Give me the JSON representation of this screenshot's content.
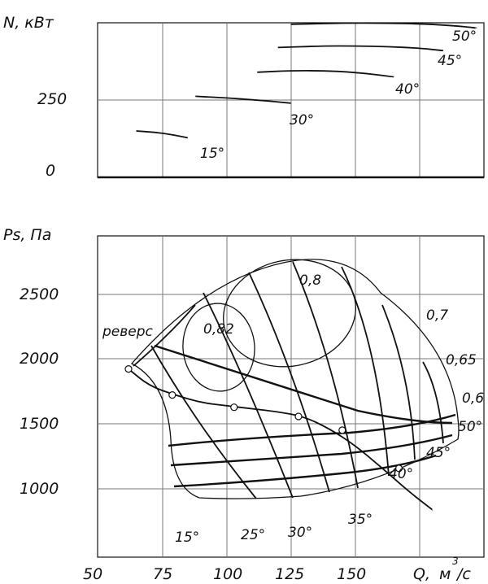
{
  "chart_data": [
    {
      "type": "line",
      "title": "",
      "ylabel": "N, кВт",
      "xlim": [
        50,
        200
      ],
      "ylim": [
        0,
        500
      ],
      "x_ticks": [
        50,
        75,
        100,
        125,
        150,
        175,
        200
      ],
      "y_tick_labels": [
        "0",
        "250"
      ],
      "series": [
        {
          "name": "15°",
          "x": [
            65,
            72,
            79,
            85
          ],
          "y": [
            150,
            146,
            138,
            128
          ]
        },
        {
          "name": "30°",
          "x": [
            88,
            100,
            112,
            125
          ],
          "y": [
            262,
            257,
            250,
            240
          ]
        },
        {
          "name": "40°",
          "x": [
            112,
            125,
            137,
            150,
            165
          ],
          "y": [
            340,
            345,
            345,
            340,
            325
          ]
        },
        {
          "name": "45°",
          "x": [
            120,
            137,
            150,
            162,
            175,
            184
          ],
          "y": [
            420,
            425,
            425,
            423,
            418,
            410
          ]
        },
        {
          "name": "50°",
          "x": [
            125,
            150,
            175,
            188,
            197
          ],
          "y": [
            495,
            500,
            497,
            491,
            483
          ]
        }
      ]
    },
    {
      "type": "line",
      "title": "",
      "xlabel": "Q, м³/c",
      "ylabel": "Ps, Па",
      "xlim": [
        50,
        200
      ],
      "ylim": [
        750,
        2850
      ],
      "x_tick_labels": [
        "50",
        "75",
        "100",
        "125",
        "150"
      ],
      "y_tick_labels": [
        "1000",
        "1500",
        "2000",
        "2500"
      ],
      "reverse_label": "реверс",
      "blade_angle_labels": [
        "15°",
        "25°",
        "30°",
        "35°",
        "40°",
        "45°",
        "50°"
      ],
      "efficiency_labels": [
        "0,82",
        "0,8",
        "0,7",
        "0,65",
        "0,6"
      ],
      "x_axis_title_main": "Q,",
      "x_axis_title_unit": "м",
      "x_axis_title_sup": "3",
      "x_axis_title_den": "/c",
      "reverse_line": {
        "x": [
          62,
          70,
          80,
          90,
          100,
          110,
          120,
          130,
          140,
          150,
          160,
          170,
          180
        ],
        "y": [
          1980,
          1870,
          1810,
          1760,
          1740,
          1720,
          1700,
          1670,
          1590,
          1480,
          1340,
          1190,
          1060
        ]
      },
      "reverse_points": {
        "x": [
          62,
          79,
          103,
          128,
          145,
          167
        ],
        "y": [
          1980,
          1810,
          1730,
          1670,
          1580,
          1330
        ]
      }
    }
  ]
}
